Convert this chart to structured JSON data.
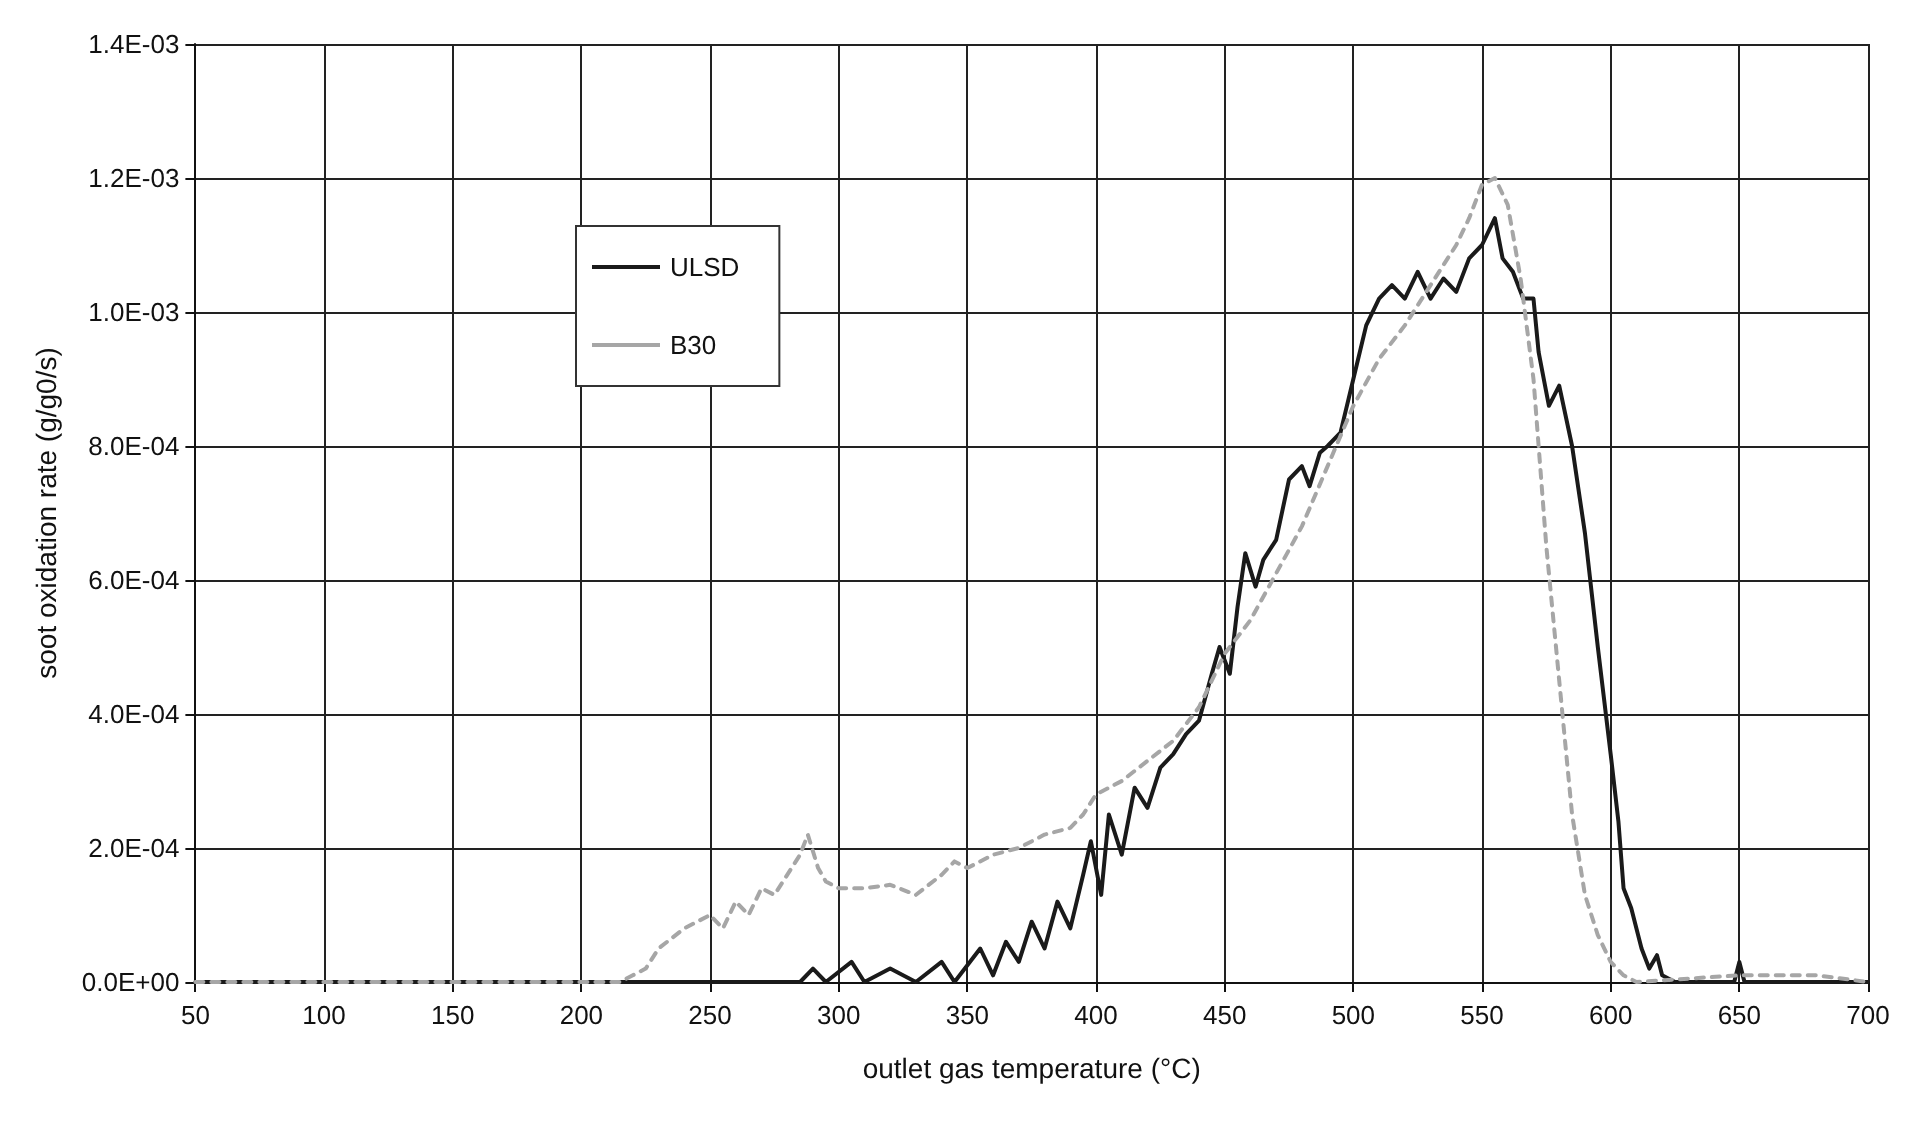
{
  "chart_data": {
    "type": "line",
    "xlabel": "outlet gas temperature (°C)",
    "ylabel": "soot oxidation rate (g/g0/s)",
    "xlim": [
      50,
      700
    ],
    "xticks": [
      50,
      100,
      150,
      200,
      250,
      300,
      350,
      400,
      450,
      500,
      550,
      600,
      650,
      700
    ],
    "ylim": [
      0,
      0.0014
    ],
    "yticks": [
      {
        "value": 0,
        "label": "0.0E+00"
      },
      {
        "value": 0.0002,
        "label": "2.0E-04"
      },
      {
        "value": 0.0004,
        "label": "4.0E-04"
      },
      {
        "value": 0.0006,
        "label": "6.0E-04"
      },
      {
        "value": 0.0008,
        "label": "8.0E-04"
      },
      {
        "value": 0.001,
        "label": "1.0E-03"
      },
      {
        "value": 0.0012,
        "label": "1.2E-03"
      },
      {
        "value": 0.0014,
        "label": "1.4E-03"
      }
    ],
    "grid": true,
    "legend": "top left",
    "marker": "none",
    "series": [
      {
        "name": "ULSD",
        "color": "#1a1a1a",
        "line_style": "solid",
        "x": [
          50,
          285,
          290,
          295,
          305,
          310,
          320,
          330,
          340,
          345,
          355,
          360,
          365,
          370,
          375,
          380,
          385,
          390,
          395,
          398,
          402,
          405,
          410,
          415,
          420,
          425,
          430,
          435,
          440,
          445,
          448,
          452,
          455,
          458,
          462,
          465,
          470,
          475,
          480,
          483,
          487,
          490,
          495,
          500,
          505,
          510,
          515,
          520,
          525,
          530,
          535,
          540,
          545,
          550,
          555,
          558,
          562,
          566,
          570,
          572,
          576,
          580,
          585,
          590,
          595,
          600,
          603,
          605,
          608,
          612,
          615,
          618,
          620,
          625,
          648,
          650,
          652,
          700
        ],
        "values": [
          0,
          0,
          2e-05,
          0,
          3e-05,
          0,
          2e-05,
          0,
          3e-05,
          0,
          5e-05,
          1e-05,
          6e-05,
          3e-05,
          9e-05,
          5e-05,
          0.00012,
          8e-05,
          0.00016,
          0.00021,
          0.00013,
          0.00025,
          0.00019,
          0.00029,
          0.00026,
          0.00032,
          0.00034,
          0.00037,
          0.00039,
          0.00046,
          0.0005,
          0.00046,
          0.00056,
          0.00064,
          0.00059,
          0.00063,
          0.00066,
          0.00075,
          0.00077,
          0.00074,
          0.00079,
          0.0008,
          0.00082,
          0.0009,
          0.00098,
          0.00102,
          0.00104,
          0.00102,
          0.00106,
          0.00102,
          0.00105,
          0.00103,
          0.00108,
          0.0011,
          0.00114,
          0.00108,
          0.00106,
          0.00102,
          0.00102,
          0.00094,
          0.00086,
          0.00089,
          0.0008,
          0.00067,
          0.0005,
          0.00034,
          0.00024,
          0.00014,
          0.00011,
          5e-05,
          2e-05,
          4e-05,
          1e-05,
          0,
          0,
          3e-05,
          0,
          0
        ]
      },
      {
        "name": "B30",
        "color": "#a6a6a6",
        "line_style": "dashed",
        "x": [
          50,
          215,
          220,
          225,
          230,
          240,
          250,
          255,
          260,
          265,
          270,
          275,
          280,
          285,
          288,
          292,
          295,
          300,
          310,
          320,
          330,
          340,
          345,
          350,
          360,
          370,
          380,
          390,
          395,
          400,
          405,
          410,
          420,
          430,
          440,
          450,
          460,
          470,
          480,
          490,
          500,
          510,
          520,
          530,
          540,
          545,
          550,
          555,
          560,
          565,
          570,
          575,
          580,
          585,
          590,
          595,
          600,
          605,
          610,
          650,
          680,
          700
        ],
        "values": [
          0,
          0,
          1e-05,
          2e-05,
          5e-05,
          8e-05,
          0.0001,
          8e-05,
          0.00012,
          0.0001,
          0.00014,
          0.00013,
          0.00016,
          0.00019,
          0.00022,
          0.00017,
          0.00015,
          0.00014,
          0.00014,
          0.000145,
          0.00013,
          0.00016,
          0.00018,
          0.00017,
          0.00019,
          0.0002,
          0.00022,
          0.00023,
          0.00025,
          0.00028,
          0.00029,
          0.0003,
          0.00033,
          0.00036,
          0.00041,
          0.00049,
          0.00054,
          0.00061,
          0.00068,
          0.00077,
          0.00086,
          0.00093,
          0.00098,
          0.00104,
          0.0011,
          0.00114,
          0.00119,
          0.0012,
          0.00116,
          0.00105,
          0.0009,
          0.00065,
          0.00045,
          0.00025,
          0.00013,
          7e-05,
          3e-05,
          1e-05,
          0,
          1e-05,
          1e-05,
          0
        ]
      }
    ]
  }
}
